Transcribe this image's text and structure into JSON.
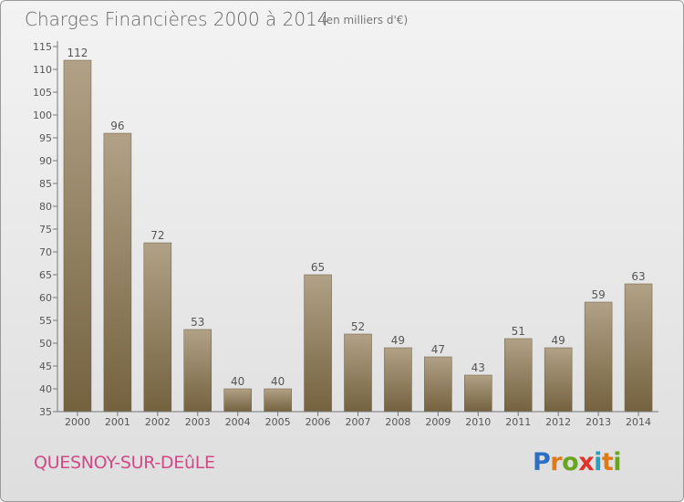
{
  "title": "Charges Financières 2000 à 2014",
  "subtitle": "(en milliers d'€)",
  "location": "QUESNOY-SUR-DEûLE",
  "brand": {
    "letters": [
      "P",
      "r",
      "o",
      "x",
      "i",
      "t",
      "i"
    ],
    "colors": [
      "#2e6fc4",
      "#e07a19",
      "#6aa521",
      "#e0342a",
      "#2aa0c0",
      "#e07a19",
      "#6aa521"
    ]
  },
  "colors": {
    "bar_top": "#b1a186",
    "bar_bottom": "#74623f",
    "axis": "#777777",
    "text": "#555555"
  },
  "chart_data": {
    "type": "bar",
    "categories": [
      "2000",
      "2001",
      "2002",
      "2003",
      "2004",
      "2005",
      "2006",
      "2007",
      "2008",
      "2009",
      "2010",
      "2011",
      "2012",
      "2013",
      "2014"
    ],
    "values": [
      112,
      96,
      72,
      53,
      40,
      40,
      65,
      52,
      49,
      47,
      43,
      51,
      49,
      59,
      63
    ],
    "ylim": [
      35,
      115
    ],
    "yticks": [
      35,
      40,
      45,
      50,
      55,
      60,
      65,
      70,
      75,
      80,
      85,
      90,
      95,
      100,
      105,
      110,
      115
    ],
    "grid": false
  }
}
